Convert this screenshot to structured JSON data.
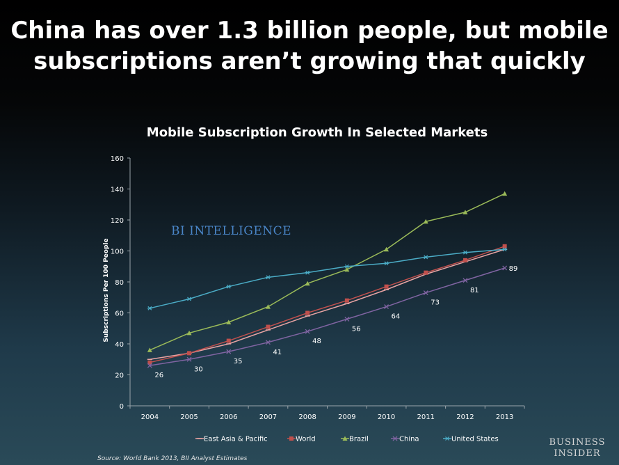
{
  "headline": {
    "line1": "China has over 1.3 billion people, but mobile",
    "line2": "subscriptions aren’t growing that quickly"
  },
  "watermark": "BI INTELLIGENCE",
  "source": "Source: World Bank 2013, BII Analyst Estimates",
  "logo": {
    "line1": "BUSINESS",
    "line2": "INSIDER"
  },
  "chart_data": {
    "type": "line",
    "title": "Mobile Subscription Growth In Selected Markets",
    "xlabel": "",
    "ylabel": "Subscriptions Per 100 People",
    "ylim": [
      0,
      160
    ],
    "yticks": [
      0,
      20,
      40,
      60,
      80,
      100,
      120,
      140,
      160
    ],
    "categories": [
      "2004",
      "2005",
      "2006",
      "2007",
      "2008",
      "2009",
      "2010",
      "2011",
      "2012",
      "2013"
    ],
    "grid": false,
    "legend_position": "bottom",
    "series": [
      {
        "name": "East Asia & Pacific",
        "color": "#e8a3a3",
        "marker": "dash",
        "values": [
          30,
          34,
          40,
          49,
          58,
          66,
          75,
          85,
          93,
          101
        ]
      },
      {
        "name": "World",
        "color": "#c0504d",
        "marker": "square",
        "values": [
          28,
          34,
          42,
          51,
          60,
          68,
          77,
          86,
          94,
          103
        ]
      },
      {
        "name": "Brazil",
        "color": "#9bbb59",
        "marker": "triangle",
        "values": [
          36,
          47,
          54,
          64,
          79,
          88,
          101,
          119,
          125,
          137
        ]
      },
      {
        "name": "China",
        "color": "#8064a2",
        "marker": "x",
        "values": [
          26,
          30,
          35,
          41,
          48,
          56,
          64,
          73,
          81,
          89
        ]
      },
      {
        "name": "United States",
        "color": "#4bacc6",
        "marker": "star",
        "values": [
          63,
          69,
          77,
          83,
          86,
          90,
          92,
          96,
          99,
          101
        ]
      }
    ],
    "data_labels": {
      "series": "China",
      "labels": [
        "26",
        "30",
        "35",
        "41",
        "48",
        "56",
        "64",
        "73",
        "81",
        "89"
      ]
    }
  }
}
